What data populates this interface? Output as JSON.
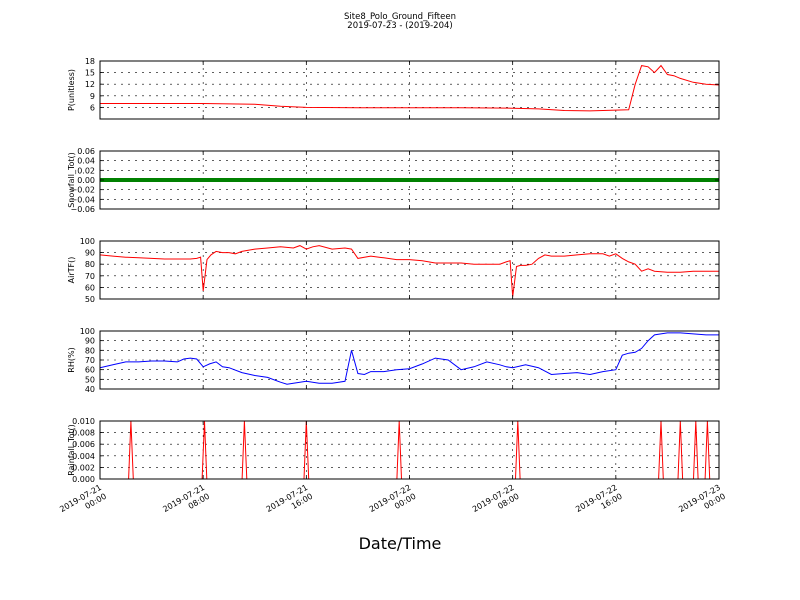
{
  "header": {
    "title": "Site8_Polo_Ground_Fifteen",
    "subtitle": "2019-07-23 - (2019-204)"
  },
  "x_axis": {
    "label": "Date/Time",
    "ticks": [
      {
        "line1": "2019-07-21",
        "line2": "00:00",
        "hour": 0
      },
      {
        "line1": "2019-07-21",
        "line2": "08:00",
        "hour": 8
      },
      {
        "line1": "2019-07-21",
        "line2": "16:00",
        "hour": 16
      },
      {
        "line1": "2019-07-22",
        "line2": "00:00",
        "hour": 24
      },
      {
        "line1": "2019-07-22",
        "line2": "08:00",
        "hour": 32
      },
      {
        "line1": "2019-07-22",
        "line2": "16:00",
        "hour": 40
      },
      {
        "line1": "2019-07-23",
        "line2": "00:00",
        "hour": 48
      }
    ]
  },
  "chart_data": [
    {
      "type": "line",
      "ylabel": "P(unitless)",
      "ylim": [
        3,
        18
      ],
      "yticks": [
        "6",
        "9",
        "12",
        "15",
        "18"
      ],
      "ytick_values": [
        6,
        9,
        12,
        15,
        18
      ],
      "grid": true,
      "series": [
        {
          "color": "#ff0000",
          "x": [
            0,
            4,
            8,
            12,
            14,
            16,
            20,
            24,
            28,
            32,
            34,
            36,
            38,
            40,
            41,
            41.5,
            42,
            42.5,
            43,
            43.5,
            44,
            44.5,
            45,
            46,
            47,
            48
          ],
          "y": [
            7,
            7,
            7,
            6.8,
            6.3,
            6,
            5.9,
            5.9,
            5.9,
            5.8,
            5.6,
            5.2,
            5.1,
            5.3,
            5.4,
            12,
            16.8,
            16.5,
            15,
            16.8,
            14.5,
            14.2,
            13.5,
            12.5,
            12,
            11.8
          ]
        }
      ]
    },
    {
      "type": "line",
      "ylabel": "Snowfall_Tot()",
      "ylim": [
        -0.06,
        0.06
      ],
      "yticks": [
        "−0.06",
        "−0.04",
        "−0.02",
        "0.00",
        "0.02",
        "0.04",
        "0.06"
      ],
      "ytick_values": [
        -0.06,
        -0.04,
        -0.02,
        0,
        0.02,
        0.04,
        0.06
      ],
      "grid": true,
      "series": [
        {
          "color": "#008000",
          "x": [
            0,
            48
          ],
          "y": [
            0,
            0
          ]
        }
      ]
    },
    {
      "type": "line",
      "ylabel": "AirTF()",
      "ylim": [
        50,
        100
      ],
      "yticks": [
        "50",
        "60",
        "70",
        "80",
        "90",
        "100"
      ],
      "ytick_values": [
        50,
        60,
        70,
        80,
        90,
        100
      ],
      "grid": true,
      "series": [
        {
          "color": "#ff0000",
          "x": [
            0,
            1,
            2,
            3,
            4,
            5,
            6,
            7,
            7.5,
            7.8,
            8,
            8.3,
            8.6,
            9,
            9.5,
            10,
            10.5,
            11,
            11.5,
            12,
            13,
            14,
            15,
            15.5,
            16,
            16.5,
            17,
            18,
            19,
            19.5,
            20,
            20.5,
            21,
            22,
            23,
            24,
            25,
            26,
            27,
            28,
            29,
            30,
            31,
            31.5,
            31.8,
            32,
            32.3,
            32.6,
            33,
            33.5,
            34,
            34.5,
            35,
            36,
            37,
            38,
            39,
            39.5,
            40,
            40.5,
            41,
            41.5,
            42,
            42.5,
            43,
            44,
            45,
            46,
            47,
            48
          ],
          "y": [
            88,
            87,
            86,
            85.5,
            85,
            84.5,
            84.5,
            84.5,
            85,
            86,
            57,
            84,
            88,
            91,
            90,
            90,
            89,
            91,
            92,
            93,
            94,
            95,
            94,
            96,
            93,
            95,
            96,
            93,
            94,
            93,
            85,
            86,
            87,
            85.5,
            84,
            84,
            83,
            81,
            81,
            81,
            80,
            80,
            80,
            82,
            83,
            52,
            78,
            79,
            79,
            80,
            85,
            88,
            87,
            87,
            88,
            89,
            89,
            87,
            89,
            85,
            82,
            80,
            74,
            76,
            74,
            73,
            73,
            74,
            74,
            74
          ]
        }
      ]
    },
    {
      "type": "line",
      "ylabel": "RH(%)",
      "ylim": [
        40,
        100
      ],
      "yticks": [
        "40",
        "50",
        "60",
        "70",
        "80",
        "90",
        "100"
      ],
      "ytick_values": [
        40,
        50,
        60,
        70,
        80,
        90,
        100
      ],
      "grid": true,
      "series": [
        {
          "color": "#0000ff",
          "x": [
            0,
            1,
            2,
            3,
            4,
            5,
            6,
            6.5,
            7,
            7.5,
            8,
            8.5,
            9,
            9.5,
            10,
            11,
            12,
            13,
            14,
            14.5,
            15,
            16,
            17,
            18,
            19,
            19.5,
            20,
            20.5,
            21,
            22,
            23,
            24,
            25,
            26,
            27,
            28,
            29,
            30,
            31,
            31.5,
            32,
            33,
            34,
            35,
            36,
            37,
            38,
            39,
            40,
            40.5,
            41,
            41.5,
            42,
            42.5,
            43,
            44,
            45,
            46,
            47,
            48
          ],
          "y": [
            62,
            65,
            68,
            68,
            69,
            69,
            68,
            71,
            72,
            71,
            63,
            66,
            68,
            63,
            62,
            57,
            54,
            52,
            47,
            45,
            46,
            48,
            46,
            46,
            48,
            80,
            56,
            55,
            58,
            58,
            60,
            61,
            66,
            72,
            70,
            60,
            63,
            68,
            65,
            63,
            62,
            65,
            62,
            55,
            56,
            57,
            55,
            58,
            60,
            75,
            77,
            78,
            82,
            90,
            96,
            98,
            98,
            97,
            96,
            96
          ]
        }
      ]
    },
    {
      "type": "line",
      "ylabel": "Rainfall_Tot()",
      "ylim": [
        0,
        0.01
      ],
      "yticks": [
        "0.000",
        "0.002",
        "0.004",
        "0.006",
        "0.008",
        "0.010"
      ],
      "ytick_values": [
        0,
        0.002,
        0.004,
        0.006,
        0.008,
        0.01
      ],
      "grid": true,
      "series": [
        {
          "color": "#ff0000",
          "spikes_x": [
            2.4,
            8.1,
            11.2,
            16,
            23.2,
            32.4,
            43.5,
            45,
            46.2,
            47.1
          ]
        }
      ]
    }
  ]
}
